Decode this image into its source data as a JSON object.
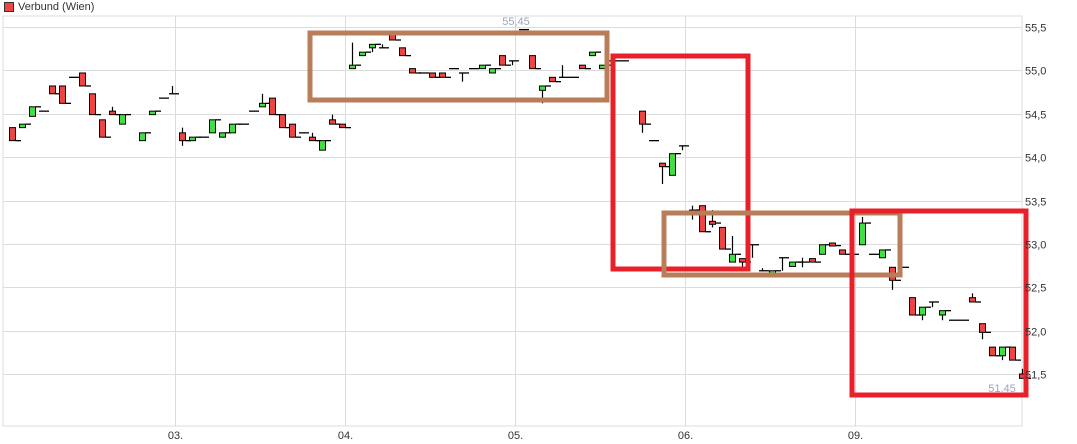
{
  "legend": {
    "label": "Verbund (Wien)",
    "color": "#ef4444"
  },
  "colors": {
    "up": "#3fe03f",
    "down": "#ef4444",
    "outline": "#000000",
    "grid": "#dcdcdc",
    "annotation_brown": "#b97d5a",
    "annotation_red": "#e8202a"
  },
  "chart_data": {
    "type": "candlestick",
    "title": "",
    "ylim": [
      51.2,
      55.63
    ],
    "yticks": [
      55.5,
      55.0,
      54.5,
      54.0,
      53.5,
      53.0,
      52.5,
      52.0,
      51.5
    ],
    "ytick_labels": [
      "55,5",
      "55,0",
      "54,5",
      "54,0",
      "53,5",
      "53,0",
      "52,5",
      "52,0",
      "51,5"
    ],
    "xtick_labels": [
      "03.",
      "04.",
      "05.",
      "06.",
      "09."
    ],
    "grid": true,
    "high_label": "55,45",
    "low_label": "51,45",
    "candles_ohlc": [
      [
        54.34,
        54.34,
        54.19,
        54.19
      ],
      [
        54.34,
        54.38,
        54.34,
        54.38
      ],
      [
        54.47,
        54.58,
        54.47,
        54.58
      ],
      [
        54.53,
        54.53,
        54.53,
        54.53
      ],
      [
        54.82,
        54.82,
        54.73,
        54.73
      ],
      [
        54.82,
        54.82,
        54.62,
        54.62
      ],
      [
        54.92,
        54.92,
        54.92,
        54.92
      ],
      [
        54.97,
        54.97,
        54.82,
        54.82
      ],
      [
        54.73,
        54.73,
        54.49,
        54.49
      ],
      [
        54.43,
        54.43,
        54.23,
        54.23
      ],
      [
        54.53,
        54.58,
        54.49,
        54.49
      ],
      [
        54.38,
        54.49,
        54.38,
        54.49
      ],
      null,
      [
        54.19,
        54.28,
        54.19,
        54.28
      ],
      [
        54.49,
        54.53,
        54.49,
        54.53
      ],
      [
        54.68,
        54.68,
        54.68,
        54.68
      ],
      [
        54.73,
        54.82,
        54.73,
        54.73
      ],
      [
        54.28,
        54.34,
        54.13,
        54.19
      ],
      [
        54.19,
        54.23,
        54.19,
        54.23
      ],
      [
        54.23,
        54.23,
        54.23,
        54.23
      ],
      [
        54.28,
        54.43,
        54.28,
        54.43
      ],
      [
        54.23,
        54.28,
        54.23,
        54.28
      ],
      [
        54.28,
        54.38,
        54.28,
        54.38
      ],
      [
        54.38,
        54.38,
        54.38,
        54.38
      ],
      [
        54.53,
        54.53,
        54.53,
        54.53
      ],
      [
        54.58,
        54.73,
        54.58,
        54.62
      ],
      [
        54.68,
        54.68,
        54.49,
        54.49
      ],
      [
        54.49,
        54.49,
        54.34,
        54.34
      ],
      [
        54.38,
        54.38,
        54.23,
        54.23
      ],
      [
        54.28,
        54.28,
        54.28,
        54.28
      ],
      [
        54.23,
        54.28,
        54.19,
        54.19
      ],
      [
        54.08,
        54.19,
        54.08,
        54.19
      ],
      [
        54.43,
        54.49,
        54.38,
        54.38
      ],
      [
        54.38,
        54.38,
        54.34,
        54.34
      ],
      [
        55.02,
        55.32,
        55.02,
        55.06
      ],
      [
        55.17,
        55.21,
        55.17,
        55.21
      ],
      [
        55.26,
        55.3,
        55.21,
        55.3
      ],
      [
        55.26,
        55.3,
        55.26,
        55.26
      ],
      [
        55.41,
        55.41,
        55.35,
        55.35
      ],
      [
        55.26,
        55.26,
        55.17,
        55.17
      ],
      [
        55.02,
        55.02,
        54.97,
        54.97
      ],
      [
        54.97,
        54.97,
        54.97,
        54.97
      ],
      [
        54.97,
        54.97,
        54.92,
        54.92
      ],
      [
        54.97,
        54.97,
        54.92,
        54.92
      ],
      [
        55.02,
        55.02,
        55.02,
        55.02
      ],
      [
        54.97,
        54.97,
        54.87,
        54.97
      ],
      [
        55.02,
        55.02,
        55.02,
        55.02
      ],
      [
        55.02,
        55.06,
        55.02,
        55.06
      ],
      [
        54.97,
        55.02,
        54.97,
        55.02
      ],
      [
        55.17,
        55.17,
        55.06,
        55.06
      ],
      [
        55.11,
        55.11,
        55.06,
        55.11
      ],
      [
        55.47,
        55.47,
        55.47,
        55.47
      ],
      [
        55.17,
        55.17,
        55.02,
        55.02
      ],
      [
        54.77,
        54.82,
        54.62,
        54.82
      ],
      [
        54.92,
        54.92,
        54.87,
        54.87
      ],
      [
        54.92,
        55.06,
        54.92,
        54.92
      ],
      [
        54.92,
        54.92,
        54.92,
        54.92
      ],
      [
        55.06,
        55.06,
        55.02,
        55.02
      ],
      [
        55.17,
        55.21,
        55.17,
        55.21
      ],
      [
        55.02,
        55.06,
        55.02,
        55.06
      ],
      [
        55.11,
        55.11,
        55.11,
        55.11
      ],
      [
        55.11,
        55.11,
        55.11,
        55.11
      ],
      null,
      [
        54.53,
        54.53,
        54.28,
        54.38
      ],
      [
        54.19,
        54.19,
        54.19,
        54.19
      ],
      [
        53.93,
        53.93,
        53.69,
        53.89
      ],
      [
        53.79,
        54.04,
        53.79,
        54.04
      ],
      [
        54.13,
        54.13,
        54.08,
        54.13
      ],
      [
        53.34,
        53.44,
        53.28,
        53.39
      ],
      [
        53.44,
        53.44,
        53.14,
        53.14
      ],
      [
        53.26,
        53.39,
        53.19,
        53.24
      ],
      [
        53.19,
        53.19,
        52.94,
        52.94
      ],
      [
        52.79,
        53.09,
        52.79,
        52.88
      ],
      [
        52.83,
        52.83,
        52.74,
        52.79
      ],
      [
        52.99,
        52.99,
        52.84,
        52.99
      ],
      [
        52.69,
        52.72,
        52.69,
        52.69
      ],
      [
        52.66,
        52.69,
        52.66,
        52.69
      ],
      [
        52.84,
        52.84,
        52.69,
        52.84
      ],
      [
        52.74,
        52.79,
        52.74,
        52.79
      ],
      [
        52.79,
        52.84,
        52.73,
        52.79
      ],
      [
        52.83,
        52.83,
        52.79,
        52.79
      ],
      [
        52.88,
        52.99,
        52.88,
        52.99
      ],
      [
        53.01,
        53.01,
        52.98,
        52.98
      ],
      [
        52.93,
        52.93,
        52.88,
        52.88
      ],
      [
        52.88,
        52.93,
        52.88,
        52.88
      ],
      [
        52.99,
        53.31,
        52.99,
        53.24
      ],
      [
        52.88,
        52.88,
        52.88,
        52.88
      ],
      [
        52.84,
        52.93,
        52.84,
        52.93
      ],
      [
        52.73,
        52.73,
        52.47,
        52.58
      ],
      [
        52.73,
        52.73,
        52.73,
        52.73
      ],
      [
        52.38,
        52.38,
        52.18,
        52.18
      ],
      [
        52.18,
        52.27,
        52.12,
        52.27
      ],
      [
        52.33,
        52.33,
        52.27,
        52.33
      ],
      [
        52.18,
        52.23,
        52.12,
        52.23
      ],
      [
        52.12,
        52.12,
        52.12,
        52.12
      ],
      [
        52.12,
        52.12,
        52.12,
        52.12
      ],
      [
        52.38,
        52.43,
        52.33,
        52.33
      ],
      [
        52.08,
        52.08,
        51.9,
        51.98
      ],
      [
        51.81,
        51.81,
        51.71,
        51.71
      ],
      [
        51.71,
        51.81,
        51.66,
        51.81
      ],
      [
        51.81,
        51.81,
        51.66,
        51.66
      ],
      [
        51.5,
        51.56,
        51.45,
        51.45
      ]
    ]
  }
}
